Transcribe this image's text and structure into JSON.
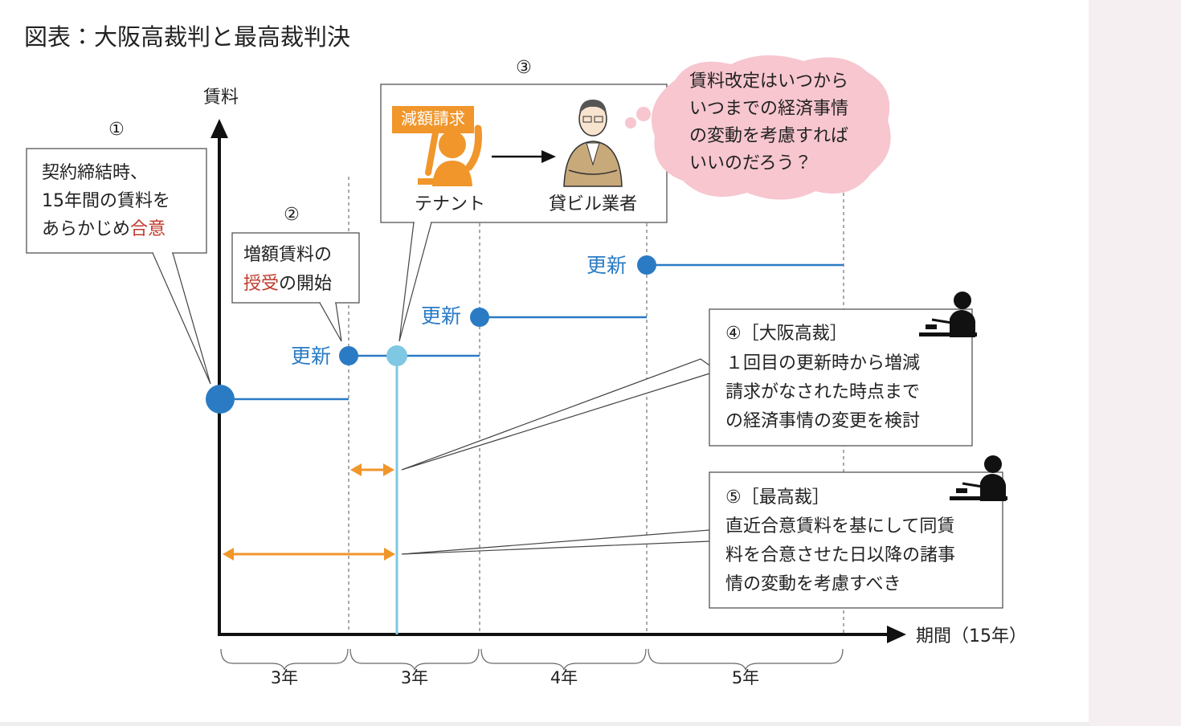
{
  "title": "図表：大阪高裁判と最高裁判決",
  "axes": {
    "y_label": "賃料",
    "x_label": "期間（15年）"
  },
  "periods": [
    "3年",
    "3年",
    "4年",
    "5年"
  ],
  "renewal_labels": [
    "更新",
    "更新",
    "更新"
  ],
  "callout_1": {
    "number": "①",
    "lines": [
      [
        "契約締結時、"
      ],
      [
        "15年間の賃料を"
      ],
      [
        "あらかじめ",
        "合意"
      ]
    ]
  },
  "callout_2": {
    "number": "②",
    "lines": [
      [
        "増額賃料の"
      ],
      [
        "授受",
        "の開始"
      ]
    ]
  },
  "callout_3": {
    "number": "③",
    "badge": "減額請求",
    "tenant": "テナント",
    "landlord": "貸ビル業者"
  },
  "thought": {
    "lines": [
      "賃料改定はいつから",
      "いつまでの経済事情",
      "の変動を考慮すれば",
      "いいのだろう？"
    ]
  },
  "ruling_4": {
    "heading": "④［大阪高裁］",
    "lines": [
      "１回目の更新時から増減",
      "請求がなされた時点まで",
      "の経済事情の変更を検討"
    ]
  },
  "ruling_5": {
    "heading": "⑤［最高裁］",
    "lines": [
      "直近合意賃料を基にして同賃",
      "料を合意させた日以降の諸事",
      "情の変動を考慮すべき"
    ]
  }
}
